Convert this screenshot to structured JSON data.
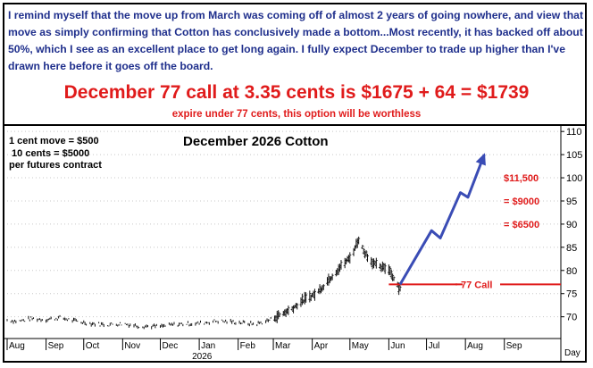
{
  "header": {
    "intro": "I remind myself that the move up from March was coming off of almost 2 years of going nowhere, and view that move as simply confirming that Cotton has conclusively made a bottom...Most recently, it has backed off about 50%, which I see as an excellent place to get long again. I fully expect December to trade up higher than I've drawn here before it goes off the board.",
    "headline": "December 77 call at 3.35 cents is $1675 + 64 = $1739",
    "subline": "expire under 77 cents, this option will be worthless"
  },
  "notes": [
    "1 cent move = $500",
    " 10 cents = $5000",
    "per futures contract"
  ],
  "colors": {
    "text_blue": "#1f2f8c",
    "red": "#e01b1b",
    "projection": "#3a4cb5"
  },
  "chart_data": {
    "type": "line",
    "title": "December 2026 Cotton",
    "year_label": "2026",
    "y_axis": {
      "ticks": [
        70,
        75,
        80,
        85,
        90,
        95,
        100,
        105,
        110
      ],
      "ylim": [
        65.5,
        111
      ],
      "position": "right"
    },
    "x_axis": {
      "labels": [
        "Aug",
        "Sep",
        "Oct",
        "Nov",
        "Dec",
        "Jan",
        "Feb",
        "Mar",
        "Apr",
        "May",
        "Jun",
        "Jul",
        "Aug",
        "Sep",
        "Day"
      ],
      "range": [
        "2025-08-01",
        "2026-10-16"
      ]
    },
    "price_series": [
      [
        "2025-08-01",
        69.3
      ],
      [
        "2025-08-10",
        69.0
      ],
      [
        "2025-08-20",
        69.6
      ],
      [
        "2025-09-01",
        69.4
      ],
      [
        "2025-09-12",
        69.8
      ],
      [
        "2025-09-24",
        69.1
      ],
      [
        "2025-10-05",
        68.6
      ],
      [
        "2025-10-18",
        68.3
      ],
      [
        "2025-11-01",
        68.5
      ],
      [
        "2025-11-15",
        68.0
      ],
      [
        "2025-12-01",
        67.9
      ],
      [
        "2025-12-15",
        68.4
      ],
      [
        "2026-01-01",
        68.6
      ],
      [
        "2026-01-15",
        69.1
      ],
      [
        "2026-02-01",
        68.8
      ],
      [
        "2026-02-15",
        68.4
      ],
      [
        "2026-02-25",
        69.2
      ],
      [
        "2026-03-05",
        70.2
      ],
      [
        "2026-03-15",
        71.6
      ],
      [
        "2026-03-25",
        73.6
      ],
      [
        "2026-04-05",
        75.2
      ],
      [
        "2026-04-15",
        78.3
      ],
      [
        "2026-04-25",
        81.2
      ],
      [
        "2026-05-02",
        83.0
      ],
      [
        "2026-05-08",
        86.8
      ],
      [
        "2026-05-12",
        84.2
      ],
      [
        "2026-05-18",
        82.0
      ],
      [
        "2026-05-25",
        80.6
      ],
      [
        "2026-06-01",
        80.4
      ],
      [
        "2026-06-06",
        77.8
      ],
      [
        "2026-06-10",
        76.0
      ]
    ],
    "projection": [
      [
        "2026-06-10",
        77.0
      ],
      [
        "2026-07-05",
        88.6
      ],
      [
        "2026-07-12",
        87.0
      ],
      [
        "2026-07-28",
        96.8
      ],
      [
        "2026-08-03",
        95.8
      ],
      [
        "2026-08-16",
        105.0
      ]
    ],
    "call_level": {
      "value": 77,
      "label": "77 Call"
    },
    "annotations": [
      {
        "label": "$11,500",
        "y": 100
      },
      {
        "label": "= $9000",
        "y": 95
      },
      {
        "label": "= $6500",
        "y": 90
      }
    ]
  }
}
